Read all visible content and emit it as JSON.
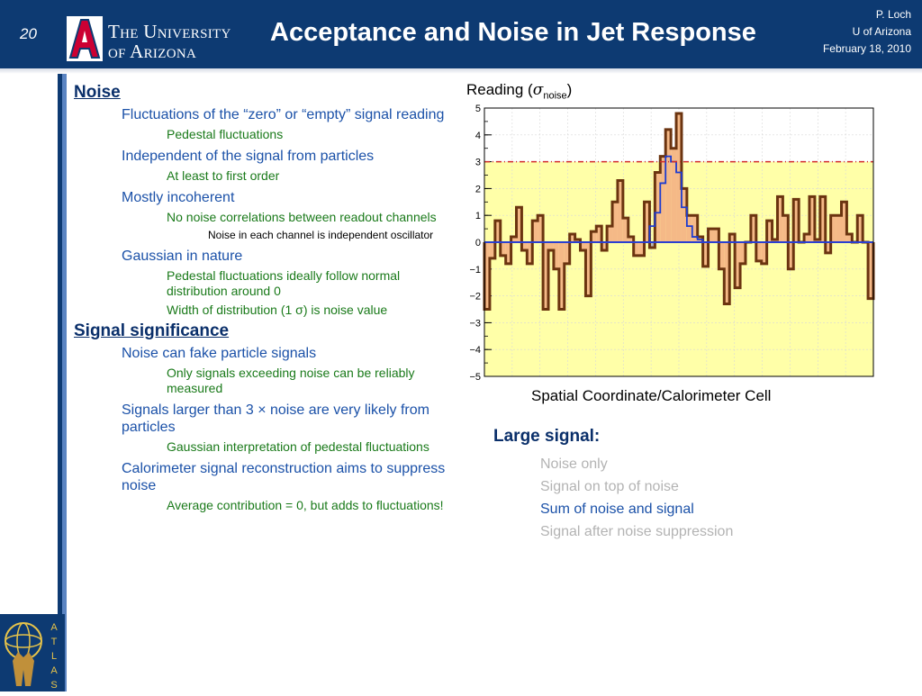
{
  "header": {
    "slide_number": "20",
    "university_line1": "The University",
    "university_line2": "of Arizona",
    "title": "Acceptance and Noise in Jet Response",
    "author": "P. Loch",
    "affiliation": "U of Arizona",
    "date": "February 18, 2010"
  },
  "bullets": [
    {
      "level": 1,
      "text": "Noise"
    },
    {
      "level": 2,
      "text": "Fluctuations of the “zero” or “empty” signal reading"
    },
    {
      "level": 3,
      "text": "Pedestal fluctuations"
    },
    {
      "level": 2,
      "text": "Independent of the signal from particles"
    },
    {
      "level": 3,
      "text": "At least to first order"
    },
    {
      "level": 2,
      "text": "Mostly incoherent"
    },
    {
      "level": 3,
      "text": "No noise correlations between readout channels"
    },
    {
      "level": 4,
      "text": "Noise in each channel is independent oscillator"
    },
    {
      "level": 2,
      "text": "Gaussian in nature"
    },
    {
      "level": 3,
      "text": "Pedestal fluctuations ideally follow normal distribution around 0"
    },
    {
      "level": 3,
      "text": "Width of distribution (1 σ) is noise value"
    },
    {
      "level": 1,
      "text": "Signal significance"
    },
    {
      "level": 2,
      "text": "Noise can fake particle signals"
    },
    {
      "level": 3,
      "text": "Only signals exceeding noise can be reliably measured"
    },
    {
      "level": 2,
      "text": "Signals larger than 3 × noise are very likely from particles"
    },
    {
      "level": 3,
      "text": "Gaussian interpretation of pedestal fluctuations"
    },
    {
      "level": 2,
      "text": "Calorimeter signal reconstruction aims to suppress noise"
    },
    {
      "level": 3,
      "text": "Average contribution = 0, but adds to fluctuations!"
    }
  ],
  "chart_data": {
    "type": "bar",
    "title_prefix": "Reading (",
    "title_symbol": "σ",
    "title_subscript": "noise",
    "title_suffix": ")",
    "xlabel": "Spatial Coordinate/Calorimeter Cell",
    "ylim": [
      -5,
      5
    ],
    "yticks": [
      -5,
      -4,
      -3,
      -2,
      -1,
      0,
      1,
      2,
      3,
      4,
      5
    ],
    "threshold": 3,
    "grid": true,
    "colors": {
      "background": "#ffffa8",
      "plot_background": "#ffffff",
      "noise_fill": "#f5b987",
      "noise_line": "#6b3410",
      "signal_line": "#1e3ccf",
      "threshold_line": "#d22b2b",
      "zero_line": "#2a3fd1",
      "negative_fill": "#b8b8b8"
    },
    "series": [
      {
        "name": "Sum of noise and signal",
        "values": [
          -2.5,
          -0.6,
          0.8,
          -0.5,
          -0.8,
          0.2,
          1.3,
          -0.3,
          -0.8,
          0.8,
          1.0,
          -2.5,
          -0.3,
          -1.0,
          -2.5,
          -0.8,
          0.3,
          0.1,
          -0.3,
          -2.0,
          0.4,
          0.6,
          -0.3,
          0.6,
          1.5,
          2.3,
          0.9,
          0.2,
          -0.5,
          -0.5,
          1.5,
          -0.2,
          2.6,
          3.2,
          4.2,
          3.5,
          4.8,
          2.0,
          1.0,
          1.0,
          0.2,
          -0.9,
          0.5,
          0.5,
          -1.0,
          -2.3,
          0.3,
          -1.7,
          -0.8,
          0.0,
          1.0,
          -0.7,
          -0.8,
          0.8,
          0.1,
          1.7,
          1.0,
          -1.0,
          1.6,
          0.0,
          0.3,
          1.7,
          0.1,
          1.7,
          -0.4,
          1.0,
          1.0,
          1.5,
          0.3,
          0.0,
          1.0,
          0.0,
          -2.1
        ]
      },
      {
        "name": "Signal",
        "values": [
          0,
          0,
          0,
          0,
          0,
          0,
          0,
          0,
          0,
          0,
          0,
          0,
          0,
          0,
          0,
          0,
          0,
          0,
          0,
          0,
          0,
          0,
          0,
          0,
          0,
          0,
          0,
          0,
          0,
          0,
          0,
          0.6,
          1.1,
          2.2,
          3.2,
          3.0,
          2.6,
          1.3,
          0.6,
          0.2,
          0.1,
          0,
          0,
          0,
          0,
          0,
          0,
          0,
          0,
          0,
          0,
          0,
          0,
          0,
          0,
          0,
          0,
          0,
          0,
          0,
          0,
          0,
          0,
          0,
          0,
          0,
          0,
          0,
          0,
          0,
          0,
          0,
          0
        ]
      }
    ]
  },
  "legend_panel": {
    "title": "Large signal:",
    "items": [
      {
        "text": "Noise only",
        "active": false
      },
      {
        "text": "Signal on top of noise",
        "active": false
      },
      {
        "text": "Sum of noise and signal",
        "active": true
      },
      {
        "text": "Signal after noise suppression",
        "active": false
      }
    ]
  }
}
